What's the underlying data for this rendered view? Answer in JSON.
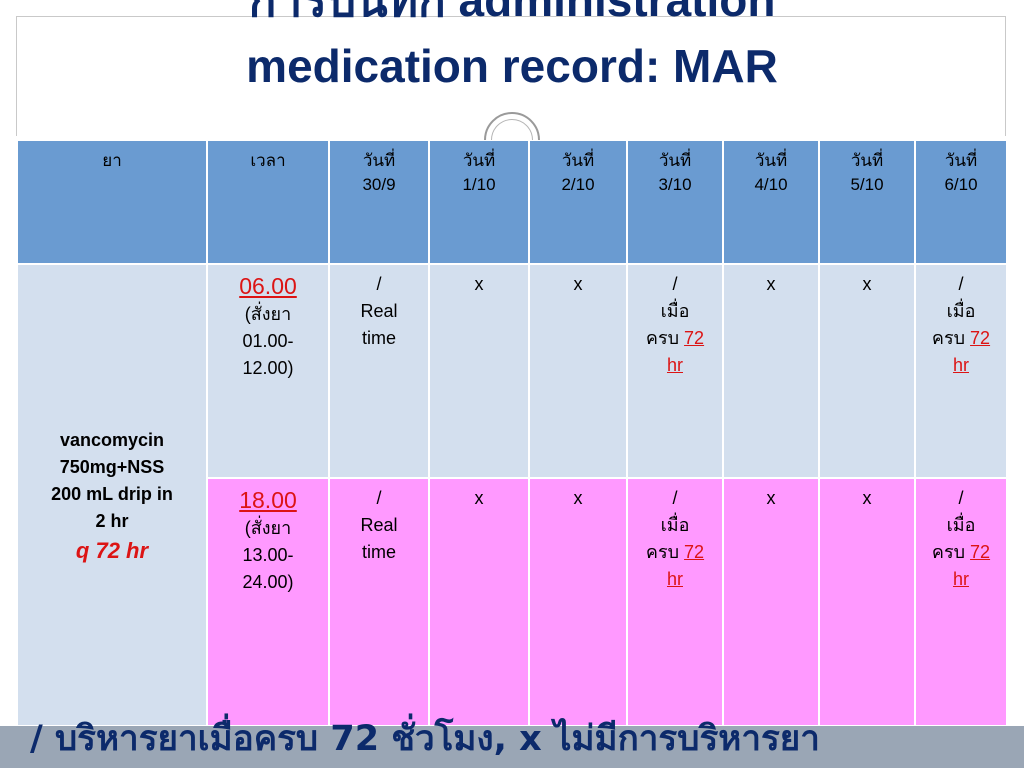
{
  "title": {
    "line1": "การบันทึก administration",
    "line2": "medication record: MAR"
  },
  "table": {
    "headers": [
      "ยา",
      "เวลา",
      "วันที่\n30/9",
      "วันที่\n1/10",
      "วันที่\n2/10",
      "วันที่\n3/10",
      "วันที่\n4/10",
      "วันที่\n5/10",
      "วันที่\n6/10"
    ],
    "drug": {
      "name_lines": [
        "vancomycin",
        "750mg+NSS",
        "200 mL drip in",
        "2 hr"
      ],
      "frequency": "q 72 hr"
    },
    "rows": [
      {
        "time": "06.00",
        "time_note": [
          "(สั่งยา",
          "01.00-",
          "12.00)"
        ],
        "days": {
          "d30_9": [
            "/",
            "Real",
            "time"
          ],
          "d1_10": "x",
          "d2_10": "x",
          "d3_10": {
            "mark": "/",
            "line2": "เมื่อ",
            "line3_prefix": "ครบ ",
            "line3_hl": "72",
            "line4_hl": "hr"
          },
          "d4_10": "x",
          "d5_10": "x",
          "d6_10": {
            "mark": "/",
            "line2": "เมื่อ",
            "line3_prefix": "ครบ ",
            "line3_hl": "72",
            "line4_hl": "hr"
          }
        }
      },
      {
        "time": "18.00",
        "time_note": [
          "(สั่งยา",
          "13.00-",
          "24.00)"
        ],
        "days": {
          "d30_9": [
            "/",
            "Real",
            "time"
          ],
          "d1_10": "x",
          "d2_10": "x",
          "d3_10": {
            "mark": "/",
            "line2": "เมื่อ",
            "line3_prefix": "ครบ ",
            "line3_hl": "72",
            "line4_hl": "hr"
          },
          "d4_10": "x",
          "d5_10": "x",
          "d6_10": {
            "mark": "/",
            "line2": "เมื่อ",
            "line3_prefix": "ครบ ",
            "line3_hl": "72",
            "line4_hl": "hr"
          }
        }
      }
    ]
  },
  "footer": {
    "text": "/ บริหารยาเมื่อครบ 72 ชั่วโมง, x ไม่มีการบริหารยา"
  },
  "colors": {
    "title": "#0c2a6b",
    "header_bg": "#6a9bd1",
    "row_light": "#d3dfee",
    "row_pink": "#ff99ff",
    "highlight_red": "#dc1414",
    "footer_bar": "#9aa6b5"
  }
}
